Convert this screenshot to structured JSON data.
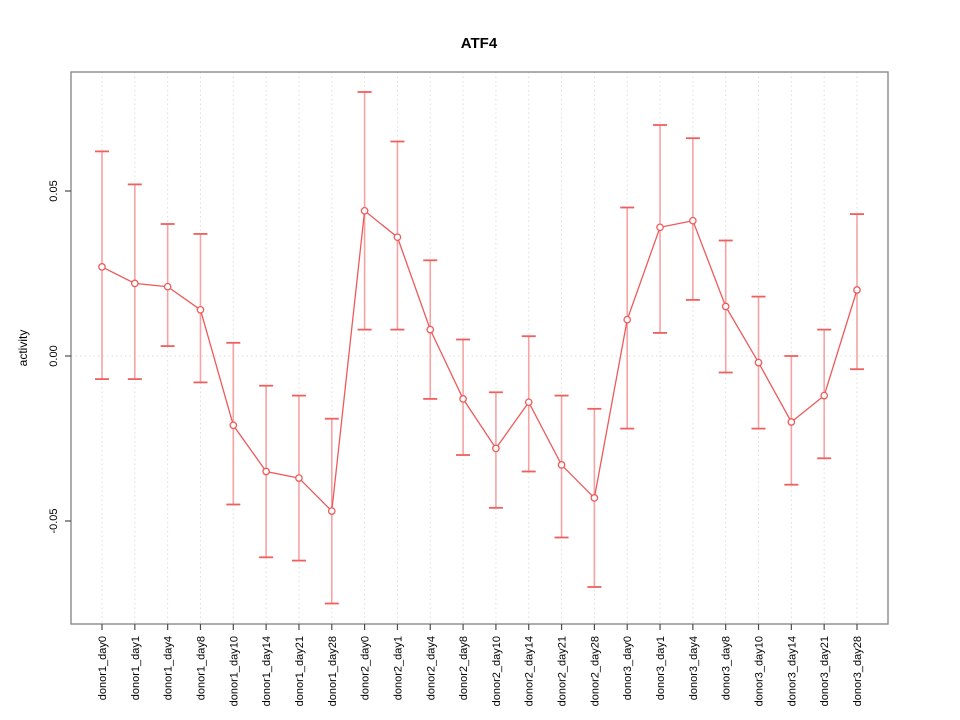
{
  "figure": {
    "title": "ATF4"
  },
  "chart_data": {
    "type": "line",
    "title": "ATF4",
    "xlabel": "",
    "ylabel": "activity",
    "legend_position": "none",
    "grid": "vertical dotted gridline at each category; dotted horizontal line at y=0",
    "error_bars": true,
    "marker": "open-circle",
    "ylim": [
      -0.081,
      0.086
    ],
    "yticks": [
      -0.05,
      0.0,
      0.05
    ],
    "ytick_labels": [
      "-0.05",
      "0.00",
      "0.05"
    ],
    "categories": [
      "donor1_day0",
      "donor1_day1",
      "donor1_day4",
      "donor1_day8",
      "donor1_day10",
      "donor1_day14",
      "donor1_day21",
      "donor1_day28",
      "donor2_day0",
      "donor2_day1",
      "donor2_day4",
      "donor2_day8",
      "donor2_day10",
      "donor2_day14",
      "donor2_day21",
      "donor2_day28",
      "donor3_day0",
      "donor3_day1",
      "donor3_day4",
      "donor3_day8",
      "donor3_day10",
      "donor3_day14",
      "donor3_day21",
      "donor3_day28"
    ],
    "series": [
      {
        "name": "ATF4 activity",
        "values": [
          0.027,
          0.022,
          0.021,
          0.014,
          -0.021,
          -0.035,
          -0.037,
          -0.047,
          0.044,
          0.036,
          0.008,
          -0.013,
          -0.028,
          -0.014,
          -0.033,
          -0.043,
          0.011,
          0.039,
          0.041,
          0.015,
          -0.002,
          -0.02,
          -0.012,
          0.02
        ],
        "lower": [
          -0.007,
          -0.007,
          0.003,
          -0.008,
          -0.045,
          -0.061,
          -0.062,
          -0.075,
          0.008,
          0.008,
          -0.013,
          -0.03,
          -0.046,
          -0.035,
          -0.055,
          -0.07,
          -0.022,
          0.007,
          0.017,
          -0.005,
          -0.022,
          -0.039,
          -0.031,
          -0.004
        ],
        "upper": [
          0.062,
          0.052,
          0.04,
          0.037,
          0.004,
          -0.009,
          -0.012,
          -0.019,
          0.08,
          0.065,
          0.029,
          0.005,
          -0.011,
          0.006,
          -0.012,
          -0.016,
          0.045,
          0.07,
          0.066,
          0.035,
          0.018,
          0.0,
          0.008,
          0.043
        ]
      }
    ],
    "colors": {
      "line": "#ee5a5a",
      "error_bar_line": "#f5a3a3",
      "error_bar_cap": "#ee5f5f",
      "marker_stroke": "#ee5a5a",
      "marker_fill": "#ffffff",
      "gridline": "#dedede",
      "zero_line": "#dcdcdc",
      "plot_border": "#8a8a8a",
      "tick": "#4d4d4d",
      "text": "#000000"
    }
  }
}
